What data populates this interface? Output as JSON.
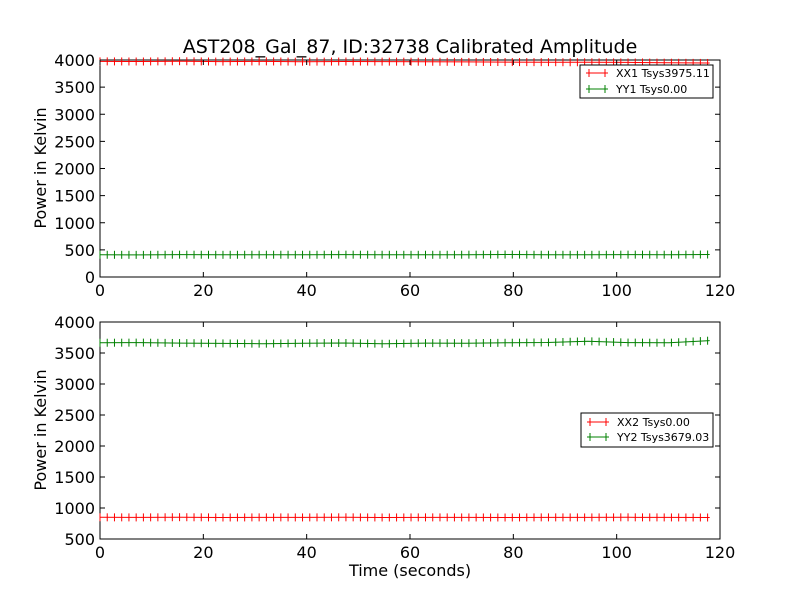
{
  "chart_data": [
    {
      "type": "line",
      "title": "AST208_Gal_87, ID:32738 Calibrated Amplitude",
      "xlabel": "",
      "ylabel": "Power in Kelvin",
      "xlim": [
        0,
        120
      ],
      "ylim": [
        0,
        4000
      ],
      "xticks": [
        "0",
        "20",
        "40",
        "60",
        "80",
        "100",
        "120"
      ],
      "yticks": [
        "0",
        "500",
        "1000",
        "1500",
        "2000",
        "2500",
        "3000",
        "3500",
        "4000"
      ],
      "grid": false,
      "legend_position": "upper right",
      "x_range": [
        0,
        118
      ],
      "series": [
        {
          "name": "XX1 Tsys3975.11",
          "color": "#ff0000",
          "marker": "+",
          "level": 3965,
          "values": [
            3975,
            3972,
            3978,
            3970,
            3975,
            3968,
            3972,
            3970,
            3968,
            3965,
            3962,
            3960,
            3958,
            3955,
            3950,
            3945
          ]
        },
        {
          "name": "YY1 Tsys0.00",
          "color": "#008000",
          "marker": "+",
          "level": 410,
          "values": [
            410,
            408,
            412,
            409,
            411,
            410,
            412,
            410,
            409,
            411,
            414,
            410,
            409,
            412,
            411,
            415
          ]
        }
      ]
    },
    {
      "type": "line",
      "title": "",
      "xlabel": "Time (seconds)",
      "ylabel": "Power in Kelvin",
      "xlim": [
        0,
        120
      ],
      "ylim": [
        500,
        4000
      ],
      "xticks": [
        "0",
        "20",
        "40",
        "60",
        "80",
        "100",
        "120"
      ],
      "yticks": [
        "500",
        "1000",
        "1500",
        "2000",
        "2500",
        "3000",
        "3500",
        "4000"
      ],
      "grid": false,
      "legend_position": "center right",
      "x_range": [
        0,
        118
      ],
      "series": [
        {
          "name": "XX2 Tsys0.00",
          "color": "#ff0000",
          "marker": "+",
          "level": 848,
          "values": [
            850,
            848,
            852,
            847,
            849,
            848,
            850,
            847,
            849,
            848,
            847,
            849,
            848,
            850,
            848,
            847
          ]
        },
        {
          "name": "YY2 Tsys3679.03",
          "color": "#008000",
          "marker": "+",
          "level": 3665,
          "values": [
            3665,
            3668,
            3660,
            3655,
            3650,
            3658,
            3662,
            3648,
            3660,
            3658,
            3665,
            3670,
            3690,
            3668,
            3665,
            3700
          ]
        }
      ]
    }
  ]
}
